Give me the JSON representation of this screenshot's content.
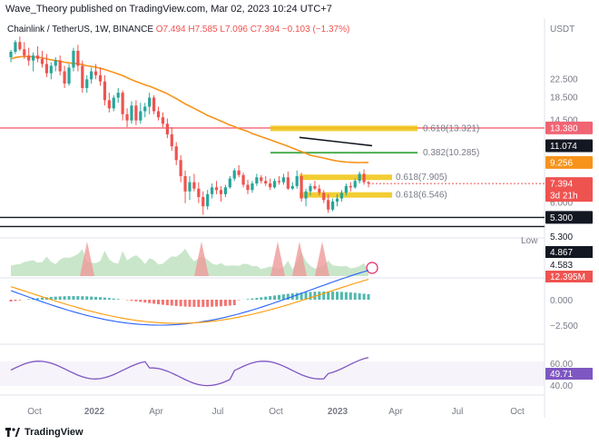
{
  "header": {
    "text": "Wave_Theory published on TradingView.com, Mar 02, 2023 10:24 UTC+7"
  },
  "symbol_line": {
    "symbol": "Chainlink / TetherUS, 1W, BINANCE",
    "o": "O7.494",
    "h": "H7.585",
    "l": "L7.096",
    "c": "C7.394",
    "chg": "−0.103 (−1.37%)"
  },
  "footer": {
    "brand": "TradingView"
  },
  "colors": {
    "up": "#26a69a",
    "down": "#ef5350",
    "ma": "#f7931a",
    "fib_gold": "#f0c40f",
    "fib_green": "#4caf50",
    "red_line": "#f06474",
    "rsi": "#7e57c2",
    "macd": "#2962ff",
    "signal": "#ff9800"
  },
  "chart_data": {
    "type": "candlestick",
    "currency": "USDT",
    "x_ticks": [
      "Oct",
      "2022",
      "Apr",
      "Jul",
      "Oct",
      "2023",
      "Apr",
      "Jul",
      "Oct"
    ],
    "price_ticks": [
      "22.500",
      "18.500",
      "14.500",
      "6.000"
    ],
    "candles": [
      [
        28.5,
        30.8,
        27.0,
        30.2
      ],
      [
        30.2,
        34.2,
        29.5,
        33.5
      ],
      [
        33.5,
        35.5,
        30.5,
        31.0
      ],
      [
        31.0,
        33.5,
        28.0,
        29.0
      ],
      [
        29.0,
        31.5,
        26.0,
        27.5
      ],
      [
        27.5,
        30.0,
        24.5,
        29.0
      ],
      [
        29.0,
        32.0,
        27.0,
        28.0
      ],
      [
        28.0,
        30.5,
        25.5,
        26.5
      ],
      [
        26.5,
        29.5,
        23.0,
        24.0
      ],
      [
        24.0,
        27.0,
        22.5,
        26.0
      ],
      [
        26.0,
        28.5,
        24.5,
        27.5
      ],
      [
        27.5,
        29.0,
        23.5,
        24.5
      ],
      [
        24.5,
        26.0,
        20.5,
        21.5
      ],
      [
        21.5,
        26.5,
        21.0,
        25.5
      ],
      [
        25.5,
        31.5,
        24.5,
        30.5
      ],
      [
        30.5,
        32.5,
        24.5,
        26.0
      ],
      [
        26.0,
        27.5,
        19.5,
        20.5
      ],
      [
        20.5,
        23.5,
        19.5,
        22.5
      ],
      [
        22.5,
        25.5,
        21.5,
        24.5
      ],
      [
        24.5,
        26.5,
        22.5,
        23.5
      ],
      [
        23.5,
        25.5,
        21.0,
        22.0
      ],
      [
        22.0,
        23.5,
        17.0,
        18.0
      ],
      [
        18.0,
        19.5,
        15.8,
        16.5
      ],
      [
        16.5,
        19.0,
        16.0,
        18.5
      ],
      [
        18.5,
        20.5,
        17.5,
        19.5
      ],
      [
        19.5,
        20.0,
        14.5,
        15.5
      ],
      [
        15.5,
        16.5,
        13.5,
        14.5
      ],
      [
        14.5,
        17.8,
        14.0,
        17.0
      ],
      [
        17.0,
        18.0,
        13.8,
        14.5
      ],
      [
        14.5,
        17.5,
        14.0,
        16.0
      ],
      [
        16.0,
        17.5,
        15.0,
        16.8
      ],
      [
        16.8,
        19.5,
        15.5,
        18.5
      ],
      [
        18.5,
        19.0,
        15.5,
        16.0
      ],
      [
        16.0,
        16.8,
        14.5,
        15.0
      ],
      [
        15.0,
        15.8,
        13.5,
        14.0
      ],
      [
        14.0,
        14.8,
        12.0,
        12.5
      ],
      [
        12.5,
        13.5,
        10.5,
        11.0
      ],
      [
        11.0,
        11.5,
        9.0,
        9.5
      ],
      [
        9.5,
        10.0,
        7.5,
        8.0
      ],
      [
        8.0,
        8.5,
        6.0,
        6.8
      ],
      [
        6.8,
        8.0,
        6.2,
        7.5
      ],
      [
        7.5,
        8.2,
        6.8,
        7.0
      ],
      [
        7.0,
        7.5,
        6.0,
        6.4
      ],
      [
        6.4,
        6.8,
        5.3,
        5.8
      ],
      [
        5.8,
        6.9,
        5.6,
        6.6
      ],
      [
        6.6,
        7.4,
        6.3,
        7.1
      ],
      [
        7.1,
        7.6,
        6.6,
        6.9
      ],
      [
        6.9,
        7.2,
        6.1,
        6.6
      ],
      [
        6.6,
        7.3,
        6.4,
        7.1
      ],
      [
        7.1,
        8.0,
        7.0,
        7.8
      ],
      [
        7.8,
        8.7,
        7.6,
        8.5
      ],
      [
        8.5,
        9.0,
        7.9,
        8.1
      ],
      [
        8.1,
        8.3,
        7.1,
        7.3
      ],
      [
        7.3,
        7.7,
        6.6,
        6.9
      ],
      [
        6.9,
        7.6,
        6.7,
        7.4
      ],
      [
        7.4,
        8.2,
        7.2,
        7.9
      ],
      [
        7.9,
        8.1,
        7.4,
        7.6
      ],
      [
        7.6,
        8.0,
        7.2,
        7.4
      ],
      [
        7.4,
        7.8,
        6.9,
        7.1
      ],
      [
        7.1,
        7.8,
        7.0,
        7.6
      ],
      [
        7.6,
        8.0,
        7.3,
        7.5
      ],
      [
        7.5,
        8.2,
        7.3,
        7.9
      ],
      [
        7.9,
        8.4,
        6.9,
        7.0
      ],
      [
        7.0,
        7.5,
        6.9,
        7.2
      ],
      [
        7.2,
        8.5,
        7.0,
        8.0
      ],
      [
        8.0,
        8.3,
        6.1,
        6.3
      ],
      [
        6.3,
        7.0,
        5.8,
        6.8
      ],
      [
        6.8,
        7.4,
        6.5,
        7.2
      ],
      [
        7.2,
        7.6,
        6.9,
        7.0
      ],
      [
        7.0,
        7.3,
        6.5,
        6.7
      ],
      [
        6.7,
        6.9,
        6.0,
        6.2
      ],
      [
        6.2,
        6.6,
        5.4,
        5.6
      ],
      [
        5.6,
        6.3,
        5.5,
        6.1
      ],
      [
        6.1,
        6.6,
        5.8,
        6.3
      ],
      [
        6.3,
        6.9,
        6.1,
        6.7
      ],
      [
        6.7,
        7.4,
        6.5,
        7.2
      ],
      [
        7.2,
        7.5,
        6.8,
        7.1
      ],
      [
        7.1,
        7.8,
        7.0,
        7.6
      ],
      [
        7.6,
        8.4,
        7.4,
        8.2
      ],
      [
        8.2,
        8.6,
        7.3,
        7.5
      ],
      [
        7.5,
        7.6,
        7.1,
        7.4
      ]
    ],
    "ma": [
      28.0,
      28.4,
      28.6,
      28.7,
      28.7,
      28.6,
      28.5,
      28.3,
      28.0,
      27.7,
      27.5,
      27.3,
      27.0,
      26.8,
      26.7,
      26.6,
      26.3,
      26.0,
      25.8,
      25.6,
      25.3,
      25.0,
      24.6,
      24.2,
      23.8,
      23.4,
      22.9,
      22.4,
      22.0,
      21.6,
      21.2,
      20.9,
      20.5,
      20.1,
      19.7,
      19.3,
      18.8,
      18.3,
      17.8,
      17.3,
      16.9,
      16.5,
      16.1,
      15.7,
      15.3,
      15.0,
      14.7,
      14.4,
      14.1,
      13.8,
      13.6,
      13.3,
      13.1,
      12.9,
      12.6,
      12.4,
      12.2,
      12.0,
      11.8,
      11.6,
      11.4,
      11.2,
      11.0,
      10.8,
      10.6,
      10.4,
      10.2,
      10.0,
      9.9,
      9.8,
      9.7,
      9.6,
      9.5,
      9.4,
      9.35,
      9.3,
      9.28,
      9.26,
      9.25,
      9.256,
      9.256
    ],
    "fib_levels": [
      {
        "label": "0.618(13.321)",
        "value": 13.321,
        "color": "#f0c40f"
      },
      {
        "label": "0.382(10.285)",
        "value": 10.285,
        "color": "#4caf50"
      },
      {
        "label": "0.618(7.905)",
        "value": 7.905,
        "color": "#f0c40f"
      },
      {
        "label": "0.618(6.546)",
        "value": 6.546,
        "color": "#f0c40f"
      }
    ],
    "horizontal_levels": [
      13.38,
      5.3
    ],
    "price_tags": [
      {
        "text": "13.380",
        "bg": "#f06474",
        "fg": "#ffffff",
        "value": 13.38
      },
      {
        "text": "11.074",
        "bg": "#131722",
        "fg": "#ffffff",
        "value": 11.074
      },
      {
        "text": "9.256",
        "bg": "#f7931a",
        "fg": "#ffffff",
        "value": 9.256
      },
      {
        "text": "7.394",
        "bg": "#ef5350",
        "fg": "#ffffff",
        "value": 7.394
      },
      {
        "text": "3d 21h",
        "bg": "#ef5350",
        "fg": "#ffffff",
        "value": 6.85
      },
      {
        "text": "5.300",
        "bg": "#131722",
        "fg": "#ffffff",
        "value": 5.3
      }
    ],
    "volume_panel": {
      "low_label": "Low",
      "tags": [
        {
          "text": "5.300",
          "bg": "#ffffff",
          "fg": "#131722"
        },
        {
          "text": "4.867",
          "bg": "#131722",
          "fg": "#ffffff"
        },
        {
          "text": "4.583",
          "bg": "#ffffff",
          "fg": "#131722"
        },
        {
          "text": "12.395M",
          "bg": "#ef5350",
          "fg": "#ffffff"
        }
      ]
    },
    "macd_panel": {
      "ticks": [
        "0.000",
        "−2.500"
      ]
    },
    "rsi_panel": {
      "ticks": [
        "60.00",
        "40.00"
      ],
      "value_tag": "49.71"
    }
  }
}
